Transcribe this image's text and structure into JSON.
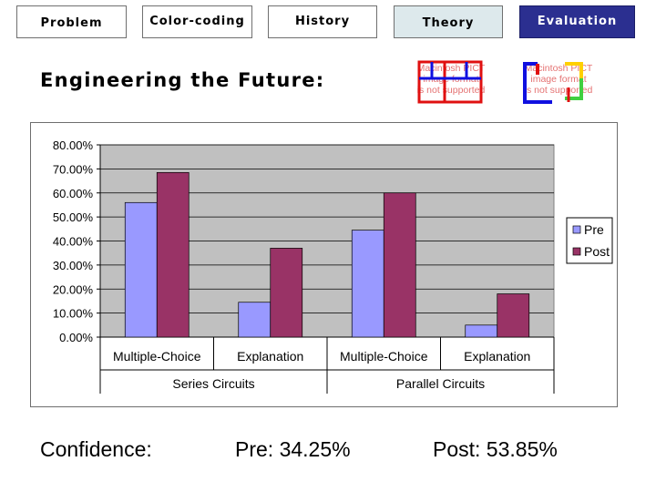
{
  "nav": {
    "problem": "Problem",
    "color_coding": "Color-coding",
    "history": "History",
    "theory": "Theory",
    "evaluation": "Evaluation"
  },
  "title": "Engineering the Future:",
  "placeholders": [
    {
      "text": "Macintosh PICT\nimage format\nis not supported"
    },
    {
      "text": "Macintosh PICT\nimage format\nis not supported"
    }
  ],
  "chart_data": {
    "type": "bar",
    "categories": [
      "Multiple-Choice",
      "Explanation",
      "Multiple-Choice",
      "Explanation"
    ],
    "groups": [
      {
        "label": "Series Circuits",
        "categories": [
          "Multiple-Choice",
          "Explanation"
        ]
      },
      {
        "label": "Parallel Circuits",
        "categories": [
          "Multiple-Choice",
          "Explanation"
        ]
      }
    ],
    "series": [
      {
        "name": "Pre",
        "color": "#9999ff",
        "values": [
          0.56,
          0.145,
          0.445,
          0.05
        ]
      },
      {
        "name": "Post",
        "color": "#993366",
        "values": [
          0.685,
          0.37,
          0.6,
          0.18
        ]
      }
    ],
    "yticks": [
      "80.00%",
      "70.00%",
      "60.00%",
      "50.00%",
      "40.00%",
      "30.00%",
      "20.00%",
      "10.00%",
      "0.00%"
    ],
    "ylim": [
      0,
      0.8
    ],
    "plot_background": "#c0c0c0",
    "grid": true,
    "legend_position": "right"
  },
  "footer": {
    "confidence": "Confidence:",
    "pre": "Pre: 34.25%",
    "post": "Post: 53.85%"
  }
}
